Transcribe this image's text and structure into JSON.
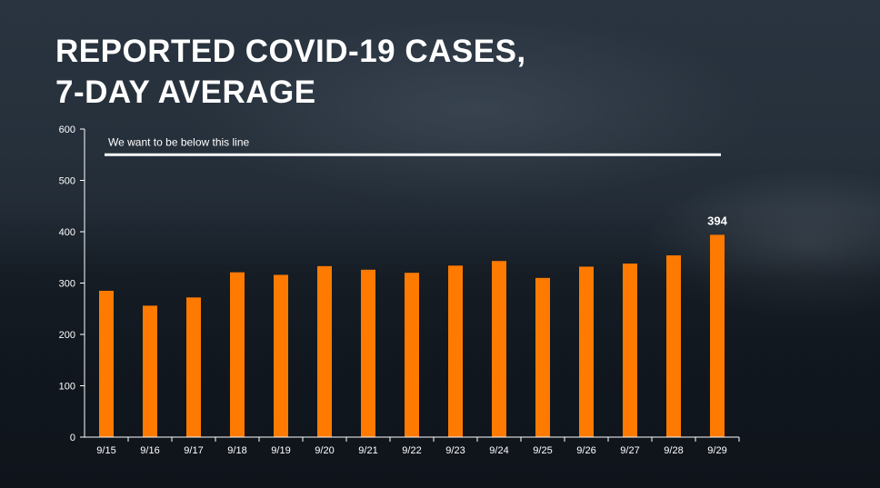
{
  "title": {
    "line1": "REPORTED COVID-19 CASES,",
    "line2": "7-DAY AVERAGE"
  },
  "colors": {
    "bar": "#ff7a00",
    "threshold_line": "#ffffff",
    "axis": "#ffffff"
  },
  "chart_data": {
    "type": "bar",
    "categories": [
      "9/15",
      "9/16",
      "9/17",
      "9/18",
      "9/19",
      "9/20",
      "9/21",
      "9/22",
      "9/23",
      "9/24",
      "9/25",
      "9/26",
      "9/27",
      "9/28",
      "9/29"
    ],
    "values": [
      285,
      256,
      272,
      321,
      316,
      333,
      326,
      320,
      334,
      343,
      310,
      332,
      338,
      354,
      394
    ],
    "ylim": [
      0,
      600
    ],
    "yticks": [
      0,
      100,
      200,
      300,
      400,
      500,
      600
    ],
    "threshold": {
      "value": 550,
      "label": "We want to be below this line"
    },
    "data_labels": [
      {
        "category": "9/29",
        "text": "394"
      }
    ],
    "grid": false
  }
}
